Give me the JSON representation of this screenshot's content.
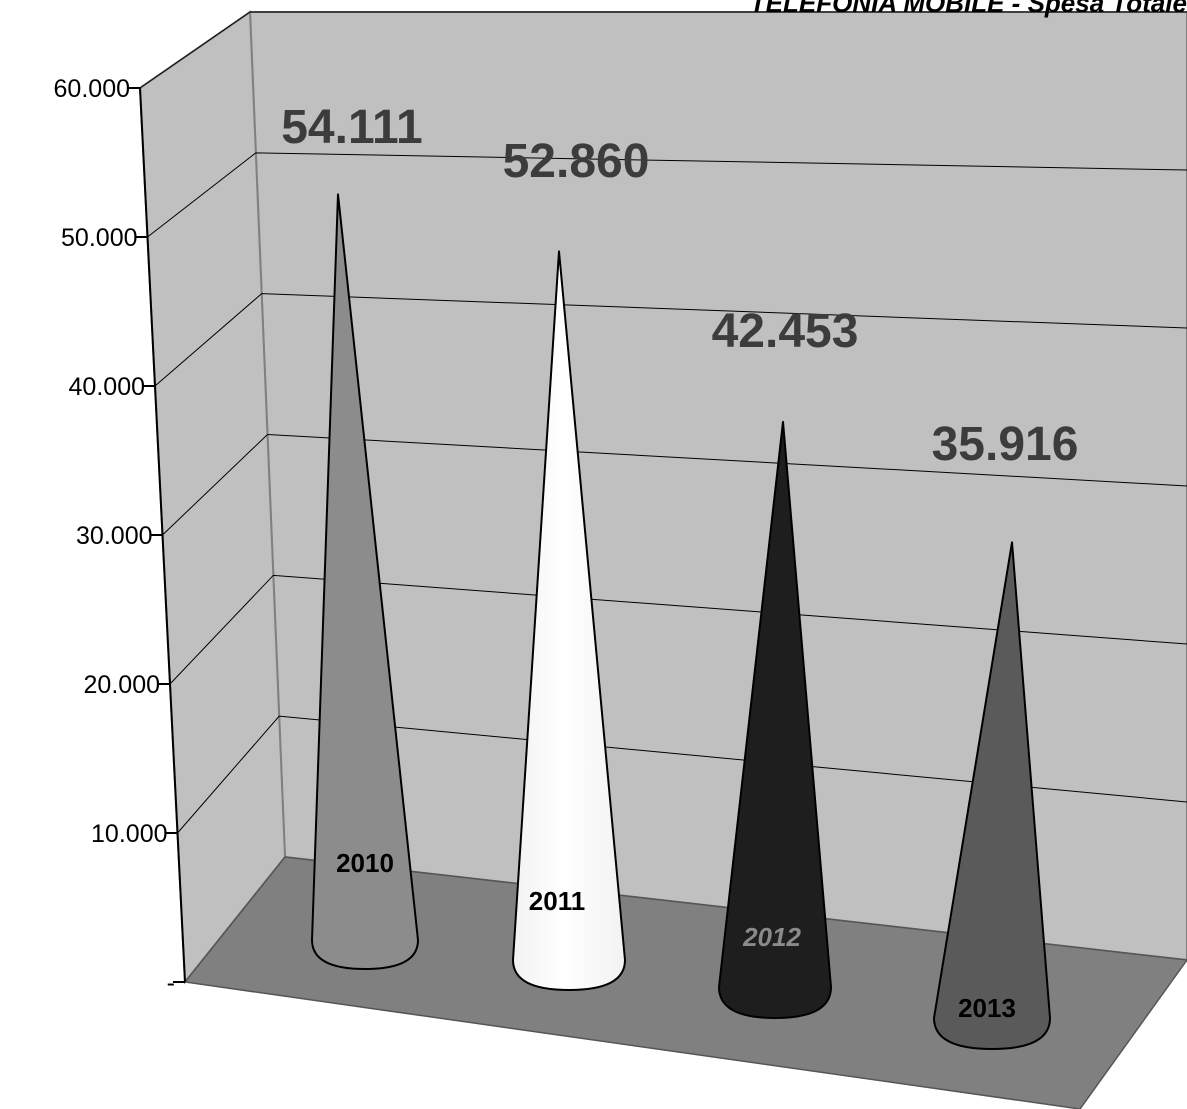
{
  "chart_data": {
    "type": "bar",
    "title": "TELEFONIA MOBILE - Spesa Totale",
    "categories": [
      "2010",
      "2011",
      "2012",
      "2013"
    ],
    "values": [
      54111,
      52860,
      42453,
      35916
    ],
    "value_labels": [
      "54.111",
      "52.860",
      "42.453",
      "35.916"
    ],
    "y_ticks": [
      {
        "value": 0,
        "label": "-"
      },
      {
        "value": 10000,
        "label": "10.000"
      },
      {
        "value": 20000,
        "label": "20.000"
      },
      {
        "value": 30000,
        "label": "30.000"
      },
      {
        "value": 40000,
        "label": "40.000"
      },
      {
        "value": 50000,
        "label": "50.000"
      },
      {
        "value": 60000,
        "label": "60.000"
      }
    ],
    "ylim": [
      0,
      60000
    ],
    "grid": true,
    "legend": "none",
    "style": "3d-cone",
    "series_colors": [
      "#8c8c8c",
      "#f2f2f2",
      "#1e1e1e",
      "#5a5a5a"
    ],
    "xlabel": "",
    "ylabel": ""
  }
}
